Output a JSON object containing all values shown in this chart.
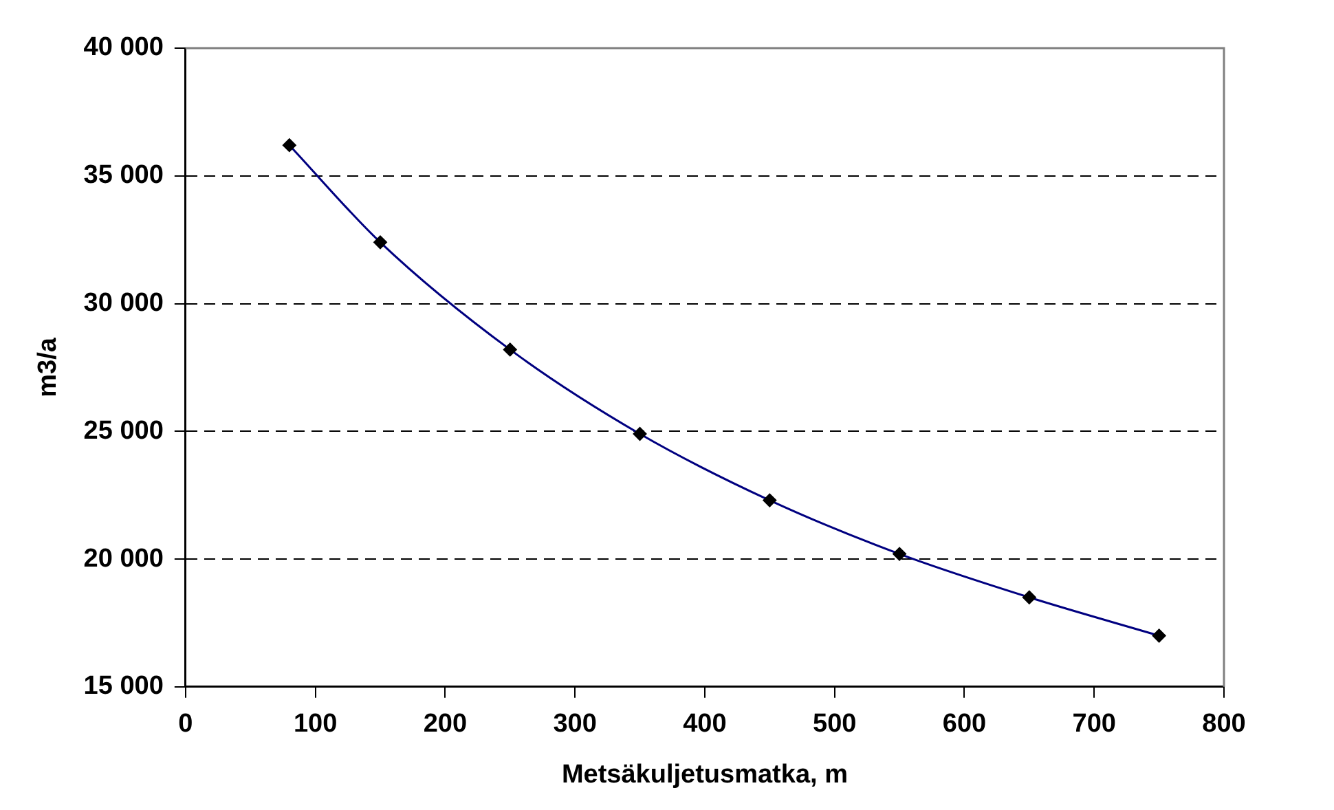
{
  "chart_data": {
    "type": "line",
    "xlabel": "Metsäkuljetusmatka, m",
    "ylabel": "m3/a",
    "x": [
      80,
      150,
      250,
      350,
      450,
      550,
      650,
      750
    ],
    "series": [
      {
        "color": "#000080",
        "values": [
          36200,
          32400,
          28200,
          24900,
          22300,
          20200,
          18500,
          17000
        ]
      }
    ],
    "xlim": [
      0,
      800
    ],
    "xticks": [
      0,
      100,
      200,
      300,
      400,
      500,
      600,
      700,
      800
    ],
    "ylim": [
      15000,
      40000
    ],
    "yticks": [
      {
        "value": 15000,
        "label": "15 000"
      },
      {
        "value": 20000,
        "label": "20 000"
      },
      {
        "value": 25000,
        "label": "25 000"
      },
      {
        "value": 30000,
        "label": "30 000"
      },
      {
        "value": 35000,
        "label": "35 000"
      },
      {
        "value": 40000,
        "label": "40 000"
      }
    ],
    "grid": "y",
    "legend": false,
    "marker": "diamond",
    "line_style": "solid"
  }
}
